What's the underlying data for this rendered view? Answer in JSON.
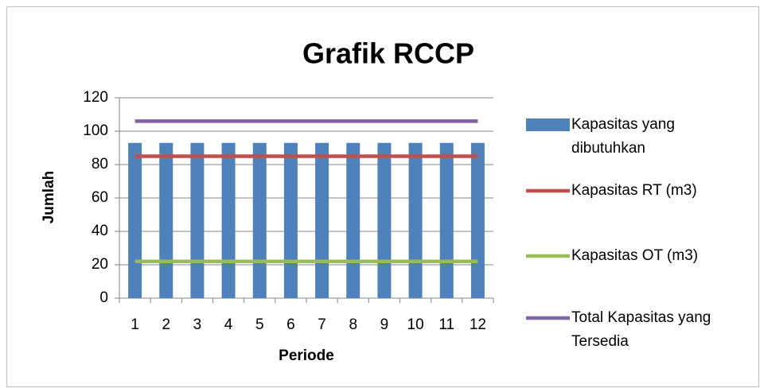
{
  "chart_data": {
    "type": "bar",
    "title": "Grafik RCCP",
    "x_label": "Periode",
    "y_label": "Jumlah",
    "categories": [
      "1",
      "2",
      "3",
      "4",
      "5",
      "6",
      "7",
      "8",
      "9",
      "10",
      "11",
      "12"
    ],
    "series": [
      {
        "name": "Kapasitas yang dibutuhkan",
        "type": "bar",
        "color": "#4f81bd",
        "values": [
          93,
          93,
          93,
          93,
          93,
          93,
          93,
          93,
          93,
          93,
          93,
          93
        ]
      },
      {
        "name": "Kapasitas RT (m3)",
        "type": "line",
        "color": "#c0504d",
        "values": [
          85,
          85,
          85,
          85,
          85,
          85,
          85,
          85,
          85,
          85,
          85,
          85
        ]
      },
      {
        "name": "Kapasitas OT (m3)",
        "type": "line",
        "color": "#9bbb59",
        "values": [
          22,
          22,
          22,
          22,
          22,
          22,
          22,
          22,
          22,
          22,
          22,
          22
        ]
      },
      {
        "name": "Total Kapasitas yang Tersedia",
        "type": "line",
        "color": "#8064a2",
        "values": [
          106,
          106,
          106,
          106,
          106,
          106,
          106,
          106,
          106,
          106,
          106,
          106
        ]
      }
    ],
    "ylim": [
      0,
      120
    ],
    "yticks": [
      0,
      20,
      40,
      60,
      80,
      100,
      120
    ],
    "grid": true,
    "legend": "right"
  }
}
